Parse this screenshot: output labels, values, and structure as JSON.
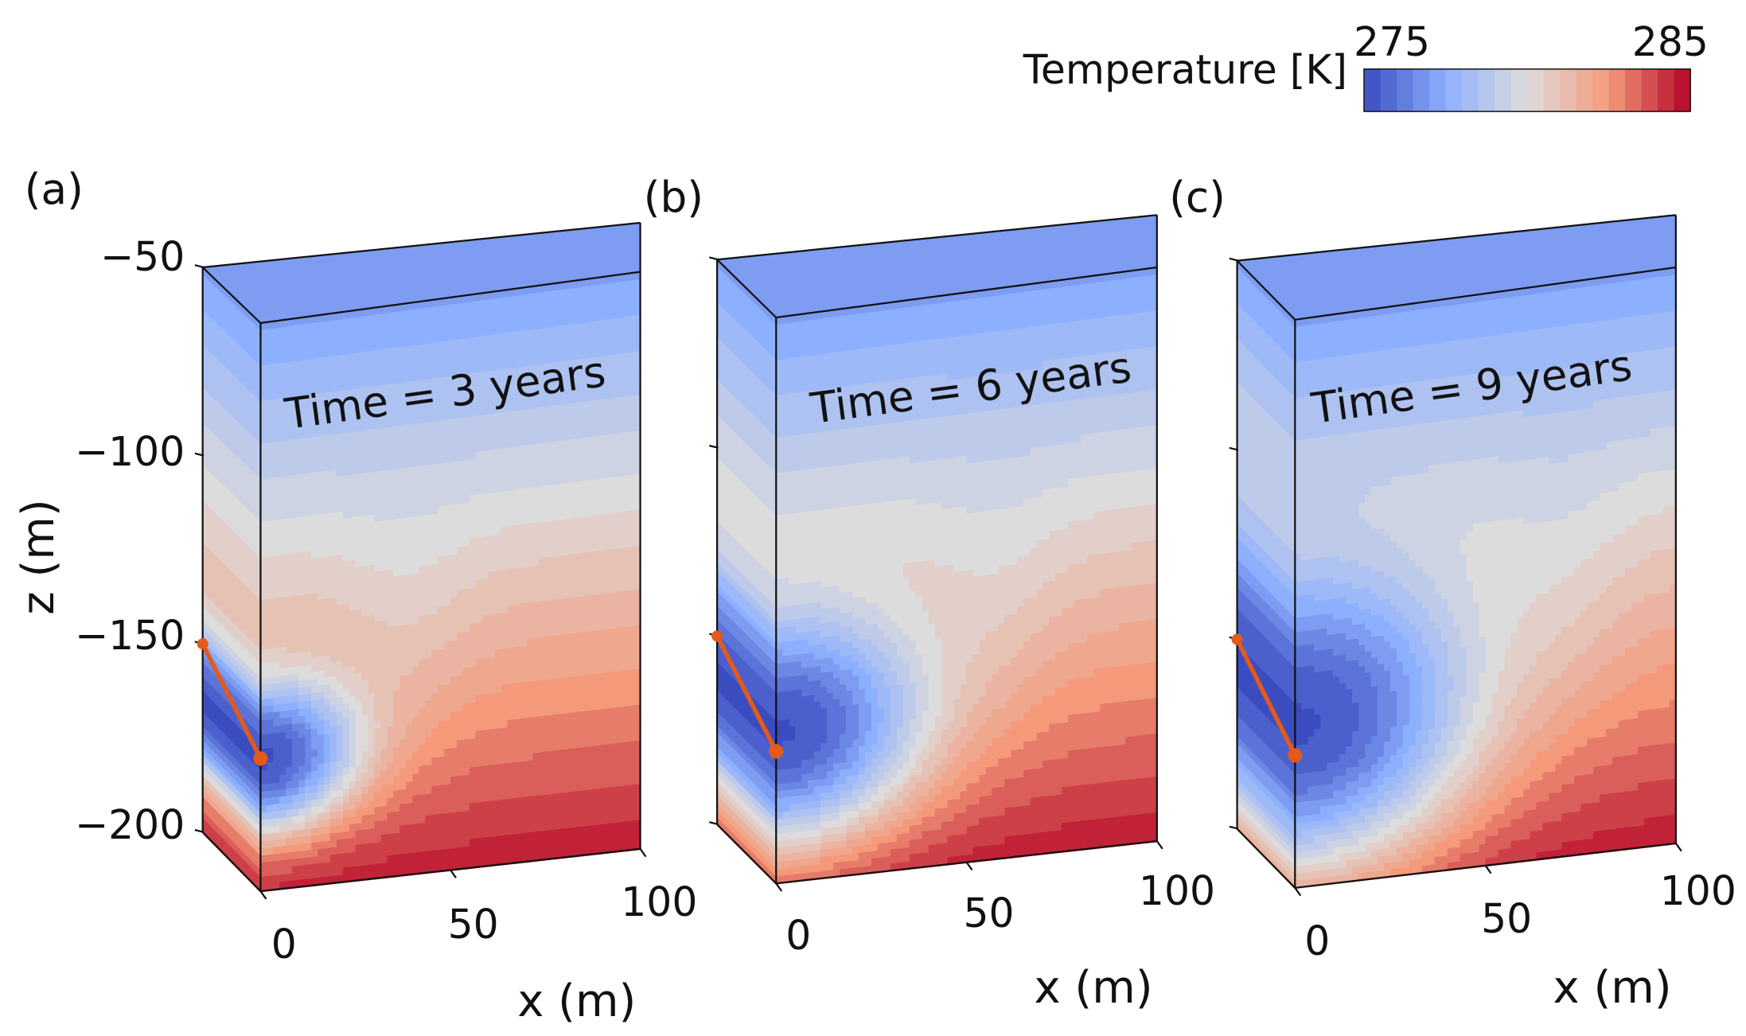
{
  "chart_data": {
    "type": "heatmap",
    "title": "",
    "colorbar": {
      "label": "Temperature [K]",
      "min": 275,
      "max": 285,
      "min_label": "275",
      "max_label": "285",
      "colormap": "coolwarm",
      "levels": 20
    },
    "axes": {
      "zlabel": "z (m)",
      "xlabel": "x (m)",
      "z_ticks": [
        -50,
        -100,
        -150,
        -200
      ],
      "z_tick_labels": [
        "−50",
        "−100",
        "−150",
        "−200"
      ],
      "x_ticks": [
        0,
        50,
        100
      ],
      "x_tick_labels": [
        "0",
        "50",
        "100"
      ],
      "zlim": [
        -200,
        -50
      ],
      "xlim": [
        0,
        100
      ]
    },
    "panels": [
      {
        "id": "a",
        "label": "(a)",
        "annotation": "Time = 3 years",
        "years": 3,
        "plume_center_z": -165,
        "plume_radius_x": 32,
        "plume_radius_z": 25
      },
      {
        "id": "b",
        "label": "(b)",
        "annotation": "Time = 6 years",
        "years": 6,
        "plume_center_z": -160,
        "plume_radius_x": 48,
        "plume_radius_z": 38
      },
      {
        "id": "c",
        "label": "(c)",
        "annotation": "Time = 9 years",
        "years": 9,
        "plume_center_z": -157,
        "plume_radius_x": 58,
        "plume_radius_z": 50
      }
    ],
    "injection_well": {
      "start_depth": -150,
      "end_depth": -165,
      "color": "#e25a1c"
    }
  }
}
